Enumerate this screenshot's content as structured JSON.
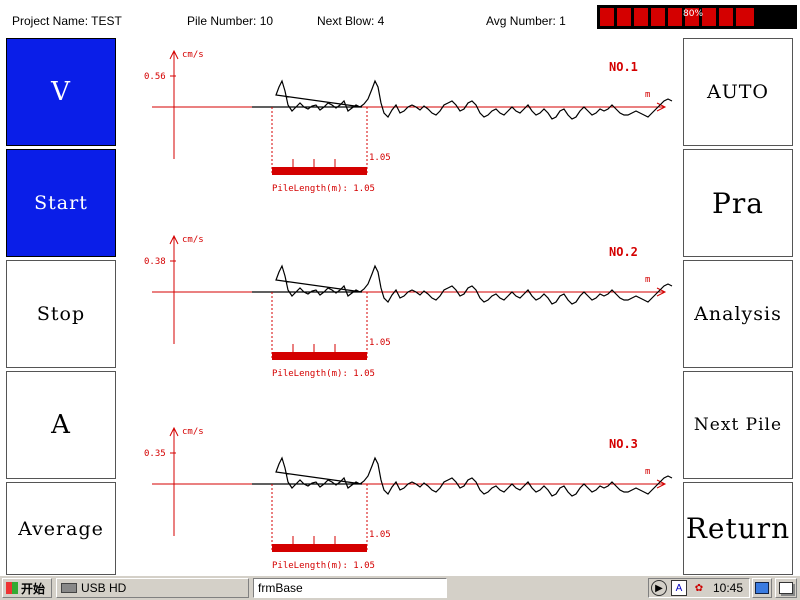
{
  "header": {
    "project": "Project Name: TEST",
    "pile": "Pile Number: 10",
    "next_blow": "Next Blow: 4",
    "avg": "Avg Number: 1",
    "battery_label": "80%",
    "battery_level": 0.8
  },
  "left_buttons": [
    "V",
    "Start",
    "Stop",
    "A",
    "Average"
  ],
  "right_buttons": [
    "AUTO",
    "Pra",
    "Analysis",
    "Next Pile",
    "Return"
  ],
  "chart_data": [
    {
      "type": "line",
      "title": "NO.1",
      "ylabel": "cm/s",
      "xlabel": "m",
      "ytick": "0.56",
      "marker_value": "1.05",
      "pile_length_text": "PileLength(m): 1.05"
    },
    {
      "type": "line",
      "title": "NO.2",
      "ylabel": "cm/s",
      "xlabel": "m",
      "ytick": "0.38",
      "marker_value": "1.05",
      "pile_length_text": "PileLength(m): 1.05"
    },
    {
      "type": "line",
      "title": "NO.3",
      "ylabel": "cm/s",
      "xlabel": "m",
      "ytick": "0.35",
      "marker_value": "1.05",
      "pile_length_text": "PileLength(m): 1.05"
    }
  ],
  "taskbar": {
    "start_label": "开始",
    "usb_label": "USB HD",
    "window_label": "frmBase",
    "clock": "10:45",
    "tray_a": "A"
  },
  "colors": {
    "accent_blue": "#0a1ee8",
    "chart_red": "#d40000"
  }
}
